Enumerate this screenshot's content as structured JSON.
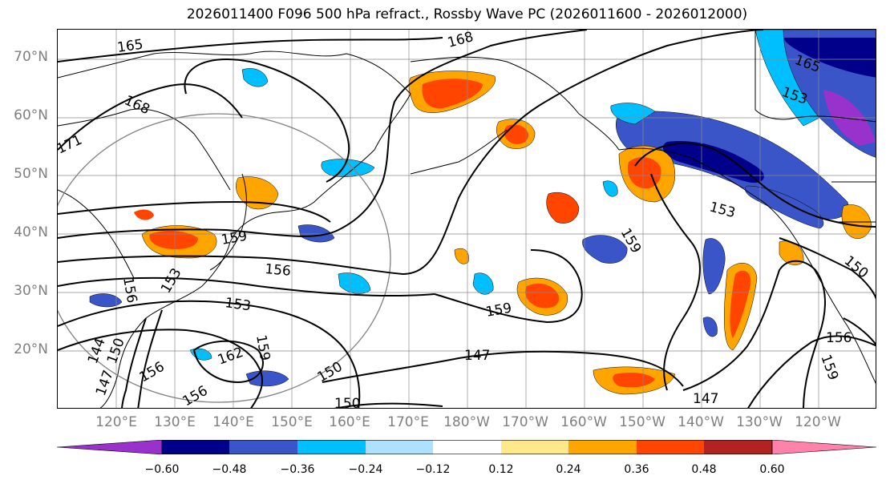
{
  "title": "2026011400 F096 500 hPa refract., Rossby Wave PC (2026011600 - 2026012000)",
  "lat_labels": [
    "70°N",
    "60°N",
    "50°N",
    "40°N",
    "30°N",
    "20°N"
  ],
  "lon_labels": [
    "120°E",
    "130°E",
    "140°E",
    "150°E",
    "160°E",
    "170°E",
    "180°W",
    "170°W",
    "160°W",
    "150°W",
    "140°W",
    "130°W",
    "120°W"
  ],
  "colorbar": {
    "colors": [
      "#9932cc",
      "#00008b",
      "#3a55c8",
      "#00bfff",
      "#aee0ff",
      "#ffffff",
      "#ffe88a",
      "#ffa500",
      "#ff4500",
      "#b22222",
      "#ff82ab"
    ],
    "labels": [
      "−0.60",
      "−0.48",
      "−0.36",
      "−0.24",
      "−0.12",
      "0.12",
      "0.24",
      "0.36",
      "0.48",
      "0.60"
    ]
  },
  "contour_labels": [
    "165",
    "168",
    "168",
    "171",
    "165",
    "159",
    "156",
    "153",
    "153",
    "162",
    "159",
    "156",
    "156",
    "150",
    "150",
    "147",
    "147",
    "159",
    "159",
    "153",
    "150",
    "156",
    "159",
    "144",
    "150",
    "147",
    "156",
    "153"
  ]
}
